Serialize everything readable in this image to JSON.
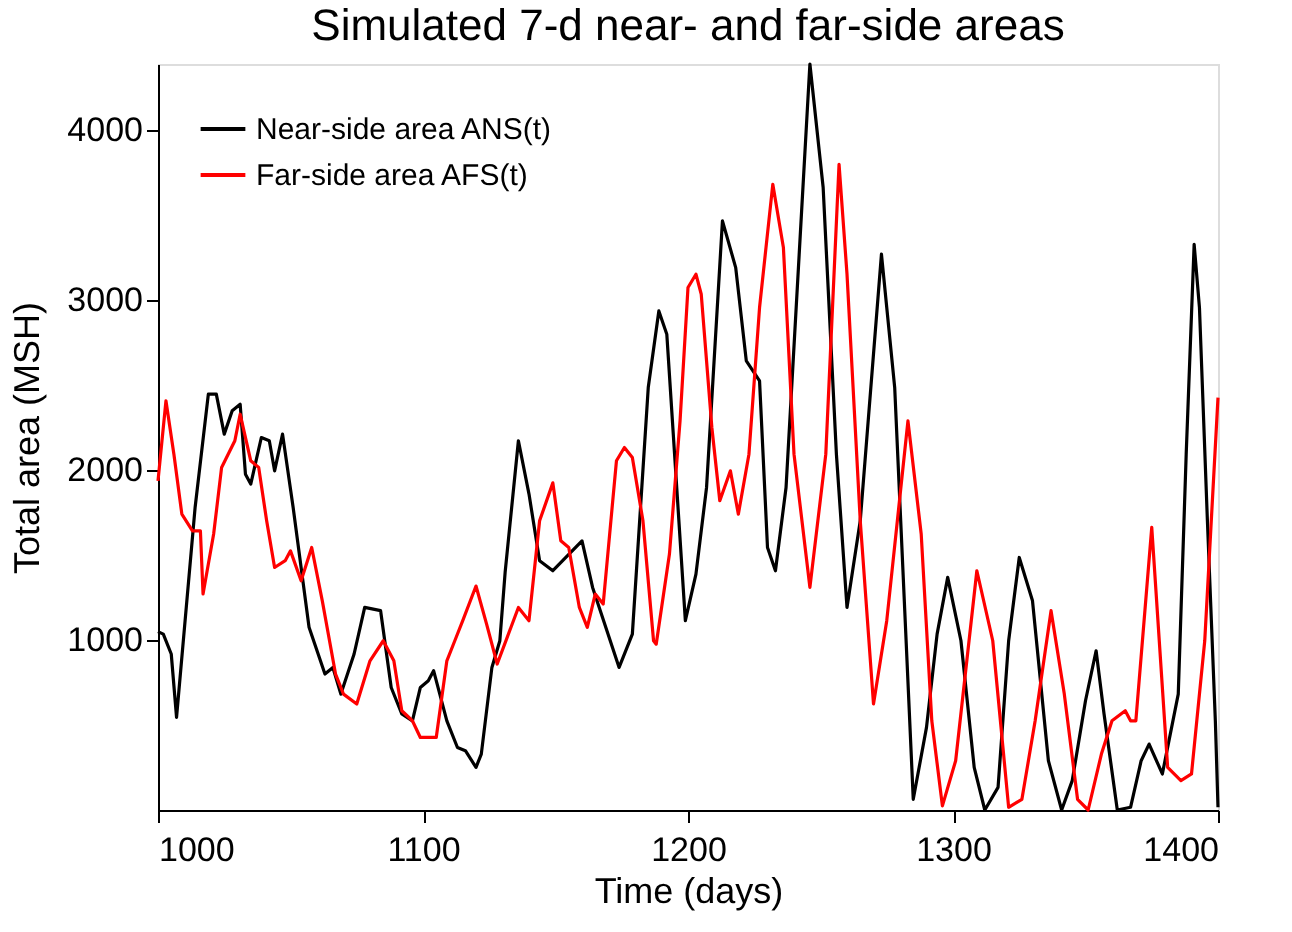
{
  "chart_data": {
    "type": "line",
    "title": "Simulated 7-d near- and far-side areas",
    "xlabel": "Time (days)",
    "ylabel": "Total area (MSH)",
    "xlim": [
      1000,
      1400
    ],
    "xticks": [
      1000,
      1100,
      1200,
      1300,
      1400
    ],
    "ylim": [
      0,
      4390
    ],
    "yticks": [
      1000,
      2000,
      3000,
      4000
    ],
    "grid": false,
    "legend": "top left",
    "marker": "none",
    "line_style": "solid",
    "series": [
      {
        "name": "Near-side area ANS(t)",
        "color": "#000000",
        "x": [
          1000,
          1002,
          1005,
          1007,
          1014,
          1019,
          1022,
          1025,
          1028,
          1031,
          1033,
          1035,
          1039,
          1042,
          1044,
          1047,
          1051,
          1057,
          1063,
          1066,
          1069,
          1074,
          1078,
          1084,
          1088,
          1092,
          1096,
          1099,
          1102,
          1104,
          1109,
          1113,
          1116,
          1120,
          1122,
          1126,
          1129,
          1131,
          1136,
          1140,
          1144,
          1149,
          1160,
          1164,
          1174,
          1179,
          1185,
          1189,
          1192,
          1199,
          1203,
          1207,
          1213,
          1218,
          1222,
          1227,
          1230,
          1233,
          1237,
          1246,
          1251,
          1256,
          1260,
          1265,
          1273,
          1278,
          1285,
          1290,
          1294,
          1298,
          1303,
          1308,
          1312,
          1317,
          1321,
          1325,
          1330,
          1336,
          1341,
          1345,
          1350,
          1354,
          1357,
          1362,
          1367,
          1371,
          1374,
          1379,
          1385,
          1388,
          1391,
          1393,
          1396,
          1399,
          1400
        ],
        "values": [
          1050,
          1035,
          918,
          545,
          1780,
          2447,
          2447,
          2212,
          2349,
          2388,
          1976,
          1918,
          2192,
          2173,
          1996,
          2212,
          1780,
          1075,
          800,
          839,
          682,
          918,
          1192,
          1173,
          721,
          565,
          525,
          721,
          761,
          820,
          525,
          368,
          349,
          251,
          329,
          839,
          996,
          1400,
          2173,
          1859,
          1467,
          1408,
          1584,
          1310,
          839,
          1035,
          2486,
          2937,
          2800,
          1114,
          1388,
          1898,
          3467,
          3192,
          2643,
          2525,
          1545,
          1408,
          1898,
          4390,
          3663,
          2094,
          1192,
          1702,
          3271,
          2486,
          63,
          486,
          1035,
          1369,
          996,
          251,
          0,
          133,
          996,
          1486,
          1231,
          290,
          0,
          173,
          643,
          937,
          565,
          0,
          16,
          290,
          388,
          212,
          682,
          2094,
          3329,
          2957,
          1702,
          525,
          16
        ]
      },
      {
        "name": "Far-side area AFS(t)",
        "color": "#ff0000",
        "x": [
          1000,
          1003,
          1006,
          1009,
          1013,
          1016,
          1017,
          1021,
          1024,
          1029,
          1031,
          1035,
          1038,
          1041,
          1044,
          1048,
          1050,
          1054,
          1058,
          1062,
          1067,
          1070,
          1075,
          1080,
          1085,
          1089,
          1092,
          1096,
          1099,
          1102,
          1105,
          1109,
          1112,
          1115,
          1120,
          1124,
          1128,
          1136,
          1140,
          1144,
          1149,
          1152,
          1155,
          1159,
          1162,
          1165,
          1168,
          1173,
          1176,
          1179,
          1183,
          1187,
          1188,
          1193,
          1197,
          1200,
          1203,
          1205,
          1209,
          1212,
          1216,
          1219,
          1223,
          1227,
          1232,
          1236,
          1240,
          1246,
          1252,
          1257,
          1260,
          1265,
          1270,
          1275,
          1283,
          1288,
          1292,
          1296,
          1301,
          1309,
          1315,
          1321,
          1326,
          1331,
          1337,
          1342,
          1347,
          1351,
          1356,
          1360,
          1365,
          1367,
          1369,
          1375,
          1381,
          1386,
          1390,
          1395,
          1400
        ],
        "values": [
          1937,
          2408,
          2094,
          1741,
          1643,
          1643,
          1271,
          1624,
          2016,
          2173,
          2329,
          2055,
          2016,
          1702,
          1427,
          1467,
          1525,
          1349,
          1545,
          1231,
          800,
          682,
          624,
          878,
          996,
          878,
          584,
          525,
          427,
          427,
          427,
          878,
          996,
          1114,
          1318,
          1094,
          859,
          1192,
          1114,
          1702,
          1925,
          1584,
          1545,
          1192,
          1075,
          1271,
          1212,
          2055,
          2133,
          2074,
          1702,
          996,
          976,
          1506,
          2290,
          3075,
          3153,
          3035,
          2251,
          1820,
          1996,
          1741,
          2094,
          2957,
          3682,
          3310,
          2094,
          1310,
          2094,
          3800,
          3153,
          1702,
          624,
          1114,
          2290,
          1624,
          525,
          24,
          290,
          1408,
          996,
          16,
          63,
          525,
          1173,
          682,
          63,
          0,
          329,
          525,
          584,
          525,
          525,
          1663,
          251,
          173,
          212,
          996,
          2427
        ]
      }
    ]
  }
}
